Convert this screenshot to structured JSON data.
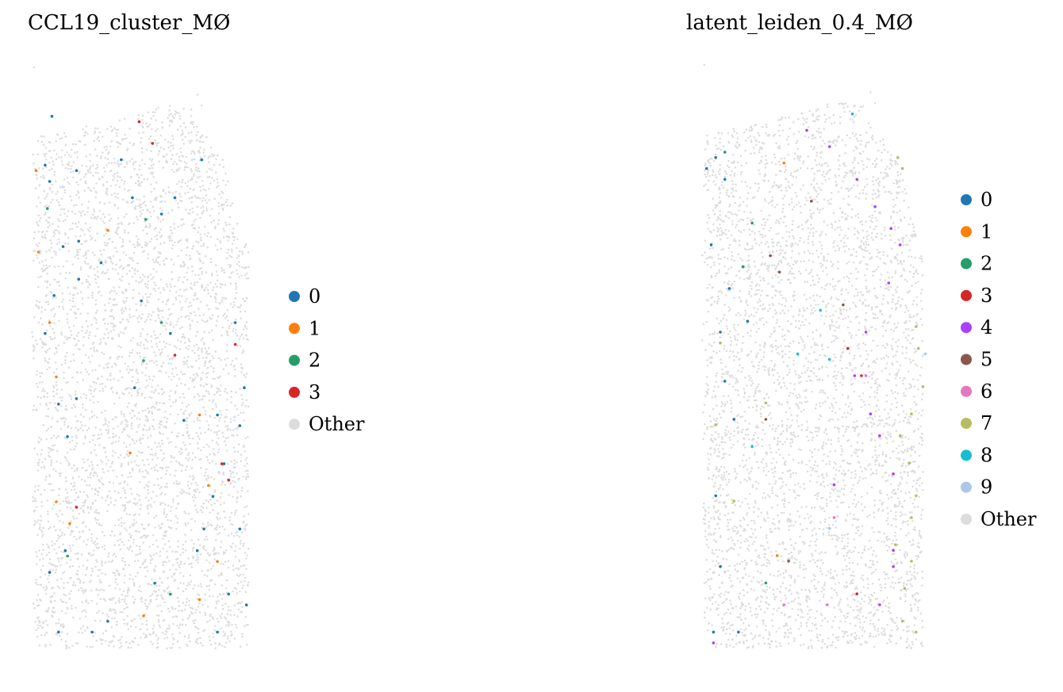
{
  "chart_data": [
    {
      "type": "scatter",
      "title": "CCL19_cluster_MØ",
      "xlabel": "",
      "ylabel": "",
      "grid": false,
      "legend_position": "right",
      "background_label": "Other",
      "background_color": "#dcdcdc",
      "legend": [
        {
          "label": "0",
          "color": "#1f77b4"
        },
        {
          "label": "1",
          "color": "#ff7f0e"
        },
        {
          "label": "2",
          "color": "#279e68"
        },
        {
          "label": "3",
          "color": "#d62728"
        },
        {
          "label": "Other",
          "color": "#dcdcdc"
        }
      ],
      "series": [
        {
          "name": "0",
          "color": "#1f77b4",
          "points": [
            [
              0.08,
              0.14
            ],
            [
              0.06,
              0.11
            ],
            [
              0.2,
              0.12
            ],
            [
              0.4,
              0.1
            ],
            [
              0.45,
              0.17
            ],
            [
              0.14,
              0.26
            ],
            [
              0.21,
              0.25
            ],
            [
              0.58,
              0.2
            ],
            [
              0.76,
              0.1
            ],
            [
              0.64,
              0.17
            ],
            [
              0.1,
              0.35
            ],
            [
              0.06,
              0.42
            ],
            [
              0.21,
              0.32
            ],
            [
              0.31,
              0.29
            ],
            [
              0.49,
              0.36
            ],
            [
              0.62,
              0.42
            ],
            [
              0.91,
              0.4
            ],
            [
              0.95,
              0.52
            ],
            [
              0.93,
              0.59
            ],
            [
              0.83,
              0.57
            ],
            [
              0.12,
              0.55
            ],
            [
              0.16,
              0.61
            ],
            [
              0.2,
              0.54
            ],
            [
              0.46,
              0.52
            ],
            [
              0.68,
              0.58
            ],
            [
              0.86,
              0.66
            ],
            [
              0.81,
              0.72
            ],
            [
              0.77,
              0.78
            ],
            [
              0.93,
              0.78
            ],
            [
              0.08,
              0.86
            ],
            [
              0.15,
              0.82
            ],
            [
              0.34,
              0.95
            ],
            [
              0.55,
              0.88
            ],
            [
              0.74,
              0.82
            ],
            [
              0.88,
              0.9
            ],
            [
              0.96,
              0.92
            ],
            [
              0.12,
              0.97
            ],
            [
              0.27,
              0.97
            ],
            [
              0.83,
              0.97
            ],
            [
              0.09,
              0.02
            ]
          ]
        },
        {
          "name": "1",
          "color": "#ff7f0e",
          "points": [
            [
              0.02,
              0.12
            ],
            [
              0.03,
              0.27
            ],
            [
              0.34,
              0.23
            ],
            [
              0.08,
              0.4
            ],
            [
              0.11,
              0.5
            ],
            [
              0.75,
              0.57
            ],
            [
              0.44,
              0.64
            ],
            [
              0.11,
              0.73
            ],
            [
              0.17,
              0.77
            ],
            [
              0.83,
              0.84
            ],
            [
              0.75,
              0.91
            ],
            [
              0.5,
              0.94
            ],
            [
              0.79,
              0.7
            ]
          ]
        },
        {
          "name": "2",
          "color": "#279e68",
          "points": [
            [
              0.07,
              0.19
            ],
            [
              0.51,
              0.21
            ],
            [
              0.58,
              0.4
            ],
            [
              0.5,
              0.47
            ],
            [
              0.16,
              0.83
            ],
            [
              0.62,
              0.9
            ]
          ]
        },
        {
          "name": "3",
          "color": "#d62728",
          "points": [
            [
              0.48,
              0.03
            ],
            [
              0.54,
              0.07
            ],
            [
              0.64,
              0.46
            ],
            [
              0.88,
              0.69
            ],
            [
              0.85,
              0.66
            ],
            [
              0.2,
              0.74
            ],
            [
              0.91,
              0.44
            ]
          ]
        }
      ]
    },
    {
      "type": "scatter",
      "title": "latent_leiden_0.4_MØ",
      "xlabel": "",
      "ylabel": "",
      "grid": false,
      "legend_position": "right",
      "background_label": "Other",
      "background_color": "#dcdcdc",
      "legend": [
        {
          "label": "0",
          "color": "#1f77b4"
        },
        {
          "label": "1",
          "color": "#ff7f0e"
        },
        {
          "label": "2",
          "color": "#279e68"
        },
        {
          "label": "3",
          "color": "#d62728"
        },
        {
          "label": "4",
          "color": "#aa40fc"
        },
        {
          "label": "5",
          "color": "#8c564b"
        },
        {
          "label": "6",
          "color": "#e377c2"
        },
        {
          "label": "7",
          "color": "#b5bd61"
        },
        {
          "label": "8",
          "color": "#17becf"
        },
        {
          "label": "9",
          "color": "#aec7e8"
        },
        {
          "label": "Other",
          "color": "#dcdcdc"
        }
      ],
      "series": [
        {
          "name": "0",
          "color": "#1f77b4",
          "points": [
            [
              0.02,
              0.12
            ],
            [
              0.06,
              0.1
            ],
            [
              0.1,
              0.14
            ],
            [
              0.04,
              0.26
            ],
            [
              0.12,
              0.34
            ],
            [
              0.08,
              0.42
            ],
            [
              0.2,
              0.4
            ],
            [
              0.1,
              0.51
            ],
            [
              0.14,
              0.58
            ],
            [
              0.06,
              0.72
            ],
            [
              0.08,
              0.85
            ],
            [
              0.05,
              0.97
            ],
            [
              0.16,
              0.97
            ]
          ]
        },
        {
          "name": "1",
          "color": "#ff7f0e",
          "points": [
            [
              0.36,
              0.11
            ],
            [
              0.33,
              0.83
            ]
          ]
        },
        {
          "name": "2",
          "color": "#279e68",
          "points": [
            [
              0.1,
              0.09
            ],
            [
              0.22,
              0.22
            ],
            [
              0.18,
              0.3
            ],
            [
              0.28,
              0.88
            ]
          ]
        },
        {
          "name": "3",
          "color": "#d62728",
          "points": [
            [
              0.64,
              0.45
            ],
            [
              0.7,
              0.5
            ],
            [
              0.68,
              0.9
            ]
          ]
        },
        {
          "name": "4",
          "color": "#aa40fc",
          "points": [
            [
              0.46,
              0.05
            ],
            [
              0.56,
              0.08
            ],
            [
              0.68,
              0.14
            ],
            [
              0.76,
              0.19
            ],
            [
              0.83,
              0.23
            ],
            [
              0.87,
              0.26
            ],
            [
              0.82,
              0.33
            ],
            [
              0.72,
              0.42
            ],
            [
              0.67,
              0.5
            ],
            [
              0.74,
              0.57
            ],
            [
              0.78,
              0.61
            ],
            [
              0.84,
              0.68
            ],
            [
              0.58,
              0.7
            ],
            [
              0.84,
              0.82
            ],
            [
              0.84,
              0.85
            ],
            [
              0.78,
              0.92
            ],
            [
              0.05,
              0.99
            ]
          ]
        },
        {
          "name": "5",
          "color": "#8c564b",
          "points": [
            [
              0.48,
              0.18
            ],
            [
              0.3,
              0.28
            ],
            [
              0.34,
              0.31
            ],
            [
              0.62,
              0.37
            ],
            [
              0.28,
              0.58
            ],
            [
              0.38,
              0.84
            ]
          ]
        },
        {
          "name": "6",
          "color": "#e377c2",
          "points": [
            [
              0.72,
              0.5
            ],
            [
              0.55,
              0.92
            ],
            [
              0.36,
              0.92
            ],
            [
              0.58,
              0.76
            ]
          ]
        },
        {
          "name": "7",
          "color": "#b5bd61",
          "points": [
            [
              0.86,
              0.1
            ],
            [
              0.88,
              0.12
            ],
            [
              0.94,
              0.41
            ],
            [
              0.95,
              0.45
            ],
            [
              0.97,
              0.52
            ],
            [
              0.92,
              0.57
            ],
            [
              0.87,
              0.61
            ],
            [
              0.91,
              0.66
            ],
            [
              0.94,
              0.72
            ],
            [
              0.92,
              0.76
            ],
            [
              0.85,
              0.81
            ],
            [
              0.92,
              0.84
            ],
            [
              0.89,
              0.89
            ],
            [
              0.88,
              0.95
            ],
            [
              0.94,
              0.97
            ],
            [
              0.08,
              0.44
            ],
            [
              0.06,
              0.59
            ],
            [
              0.14,
              0.73
            ],
            [
              0.28,
              0.55
            ]
          ]
        },
        {
          "name": "8",
          "color": "#17becf",
          "points": [
            [
              0.66,
              0.02
            ],
            [
              0.52,
              0.38
            ],
            [
              0.42,
              0.46
            ],
            [
              0.22,
              0.63
            ],
            [
              0.56,
              0.47
            ]
          ]
        },
        {
          "name": "9",
          "color": "#aec7e8",
          "points": [
            [
              0.98,
              0.46
            ],
            [
              0.56,
              0.78
            ]
          ]
        }
      ]
    }
  ]
}
